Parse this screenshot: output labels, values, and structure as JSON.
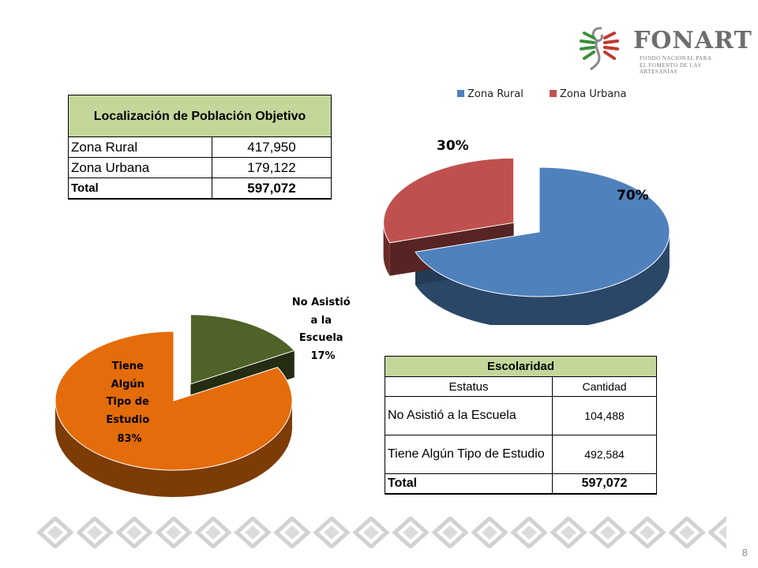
{
  "logo": {
    "name": "FONART",
    "subtitle1": "FONDO NACIONAL PARA",
    "subtitle2": "EL FOMENTO DE LAS ARTESANÍAS"
  },
  "table_population": {
    "header": "Localización de Población Objetivo",
    "rows": [
      {
        "label": "Zona Rural",
        "value": "417,950"
      },
      {
        "label": "Zona Urbana",
        "value": "179,122"
      }
    ],
    "total": {
      "label": "Total",
      "value": "597,072"
    }
  },
  "table_escolaridad": {
    "header": "Escolaridad",
    "columns": [
      "Estatus",
      "Cantidad"
    ],
    "rows": [
      {
        "label": "No Asistió a la Escuela",
        "value": "104,488"
      },
      {
        "label": "Tiene Algún Tipo de Estudio",
        "value": "492,584"
      }
    ],
    "total": {
      "label": "Total",
      "value": "597,072"
    }
  },
  "chart_data": [
    {
      "type": "pie",
      "categories": [
        "Zona Rural",
        "Zona Urbana"
      ],
      "values": [
        70,
        30
      ],
      "labels": [
        "70%",
        "30%"
      ],
      "legend": [
        "Zona Rural",
        "Zona Urbana"
      ],
      "legend_position": "top",
      "colors": [
        "#4f81bd",
        "#c0504d"
      ]
    },
    {
      "type": "pie",
      "categories": [
        "No Asistió a la Escuela",
        "Tiene Algún Tipo de Estudio"
      ],
      "values": [
        17,
        83
      ],
      "labels": [
        [
          "No Asistió",
          "a la",
          "Escuela",
          "17%"
        ],
        [
          "Tiene",
          "Algún",
          "Tipo de",
          "Estudio",
          "83%"
        ]
      ],
      "colors": [
        "#4f6228",
        "#e46c0a"
      ]
    }
  ],
  "page_number": "8"
}
